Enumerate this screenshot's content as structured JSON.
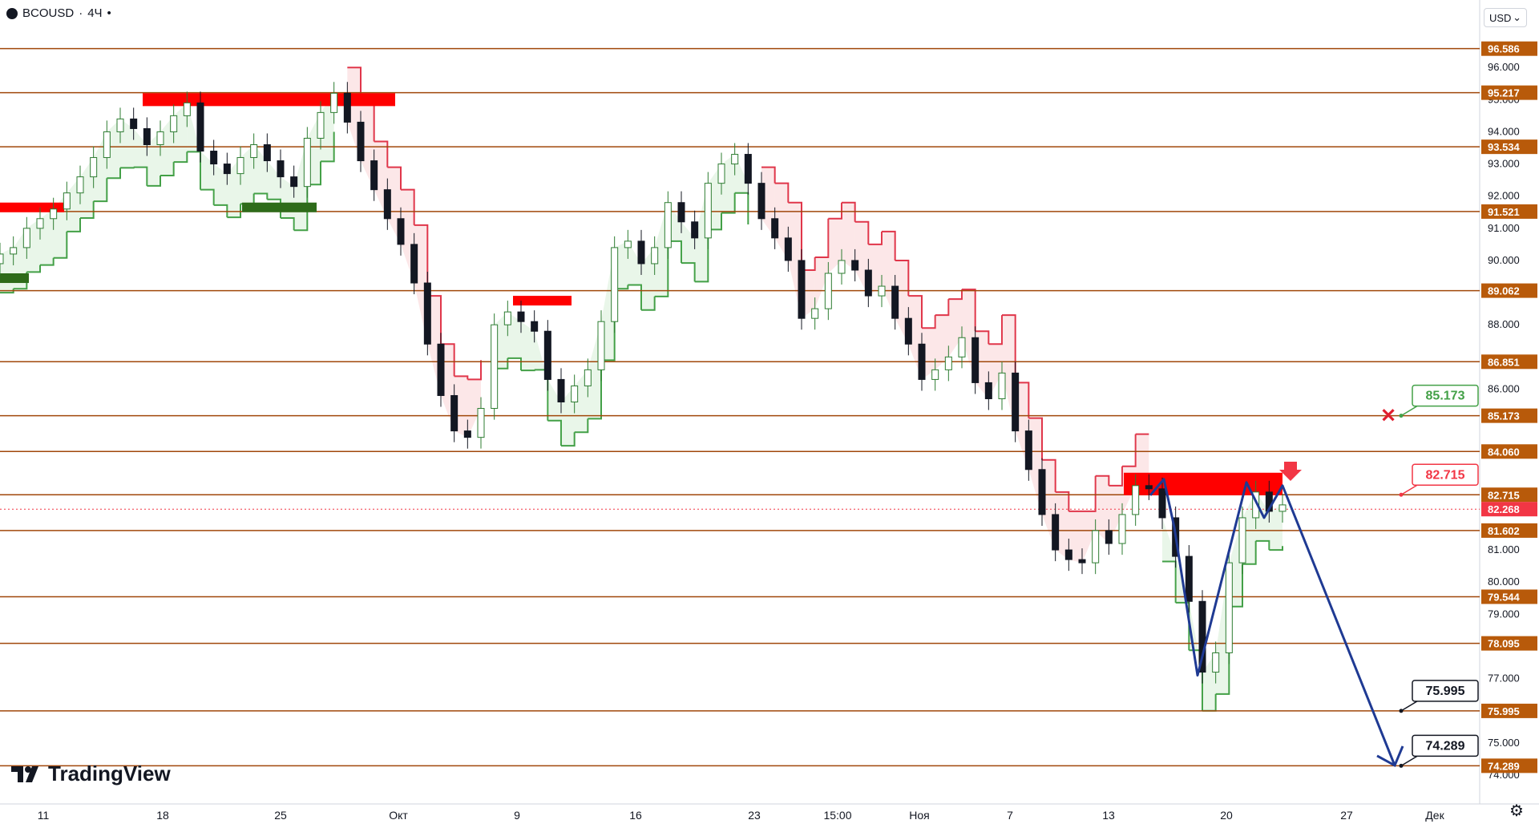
{
  "symbol": {
    "name": "BCOUSD",
    "separator": "·",
    "timeframe": "4Ч",
    "status_dot": "•"
  },
  "currency": {
    "label": "USD",
    "chevron": "⌄"
  },
  "logo": {
    "text": "TradingView"
  },
  "colors": {
    "level_line": "#a0470a",
    "level_label_bg": "#b85a0a",
    "bull_candle": "#2e7d32",
    "bear_candle": "#131722",
    "supertrend_down": "#e0364a",
    "supertrend_up": "#43a047",
    "fill_down": "rgba(240,120,130,0.18)",
    "fill_up": "rgba(120,200,120,0.16)",
    "supply_zone": "#ff0000",
    "demand_zone": "#2e6b1a",
    "projection": "#1f3a93",
    "current_price_bg": "#f23645",
    "target_green": "#43a047",
    "target_red": "#f23645",
    "target_black": "#131722"
  },
  "chart_data": {
    "type": "candlestick",
    "title": "",
    "xlabel": "",
    "ylabel": "",
    "ylim": [
      73.6,
      97.6
    ],
    "grid": false,
    "price_axis_ticks": [
      "96.000",
      "95.000",
      "94.000",
      "93.000",
      "92.000",
      "91.000",
      "90.000",
      "88.000",
      "86.000",
      "81.000",
      "80.000",
      "79.000",
      "77.000",
      "75.000",
      "74.000"
    ],
    "time_axis_labels": [
      "11",
      "18",
      "25",
      "Окт",
      "9",
      "16",
      "23",
      "15:00",
      "Ноя",
      "7",
      "13",
      "20",
      "27",
      "Дек"
    ],
    "levels": [
      96.586,
      95.217,
      93.534,
      91.521,
      89.062,
      86.851,
      85.173,
      84.06,
      82.715,
      81.602,
      79.544,
      78.095,
      75.995,
      74.289
    ],
    "level_labels": [
      "96.586",
      "95.217",
      "93.534",
      "91.521",
      "89.062",
      "86.851",
      "85.173",
      "84.060",
      "82.715",
      "81.602",
      "79.544",
      "78.095",
      "75.995",
      "74.289"
    ],
    "current_price": 82.268,
    "current_price_label": "82.268",
    "close_series": [
      90.2,
      90.4,
      91.0,
      91.3,
      91.6,
      92.1,
      92.6,
      93.2,
      94.0,
      94.4,
      94.1,
      93.6,
      94.0,
      94.5,
      94.9,
      93.4,
      93.0,
      92.7,
      93.2,
      93.6,
      93.1,
      92.6,
      92.3,
      93.8,
      94.6,
      95.2,
      94.3,
      93.1,
      92.2,
      91.3,
      90.5,
      89.3,
      87.4,
      85.8,
      84.7,
      84.5,
      85.4,
      88.0,
      88.4,
      88.1,
      87.8,
      86.3,
      85.6,
      86.1,
      86.6,
      88.1,
      90.4,
      90.6,
      89.9,
      90.4,
      91.8,
      91.2,
      90.7,
      92.4,
      93.0,
      93.3,
      92.4,
      91.3,
      90.7,
      90.0,
      88.2,
      88.5,
      89.6,
      90.0,
      89.7,
      88.9,
      89.2,
      88.2,
      87.4,
      86.3,
      86.6,
      87.0,
      87.6,
      86.2,
      85.7,
      86.5,
      84.7,
      83.5,
      82.1,
      81.0,
      80.7,
      80.6,
      81.6,
      81.2,
      82.1,
      83.0,
      82.9,
      82.0,
      80.8,
      79.4,
      77.2,
      77.8,
      80.6,
      82.0,
      82.8,
      82.2,
      82.4
    ],
    "close_series_label": "",
    "supertrend_segments": [
      {
        "direction": "down",
        "values": [
          [
            95.6,
            95.6,
            95.5,
            95.4,
            95.3,
            95.0,
            94.8,
            94.5,
            94.2,
            94.0,
            93.6,
            93.4,
            93.1,
            92.4,
            91.8,
            91.2,
            90.3,
            89.8,
            89.3,
            88.9,
            88.3,
            87.7,
            87.1
          ]
        ]
      },
      {
        "direction": "up",
        "values": [
          [
            89.3,
            89.3,
            89.6,
            90.1,
            90.8,
            91.1,
            91.6,
            92.6,
            93.0,
            93.0,
            93.0,
            92.0,
            92.0,
            92.6,
            93.4,
            93.6,
            93.6
          ]
        ]
      }
    ],
    "supply_zones": [
      {
        "from": 91.5,
        "to": 91.8
      },
      {
        "from": 94.8,
        "to": 95.2
      },
      {
        "from": 88.6,
        "to": 88.9
      },
      {
        "from": 82.7,
        "to": 83.4
      }
    ],
    "demand_zones": [
      {
        "from": 89.3,
        "to": 89.6
      },
      {
        "from": 91.5,
        "to": 91.8
      }
    ],
    "projection_path": [
      82.7,
      83.2,
      81.7,
      77.1,
      83.1,
      82.0,
      83.0,
      74.3
    ],
    "targets": [
      {
        "label": "85.173",
        "value": 85.173,
        "style": "green"
      },
      {
        "label": "82.715",
        "value": 82.715,
        "style": "red"
      },
      {
        "label": "75.995",
        "value": 75.995,
        "style": "black"
      },
      {
        "label": "74.289",
        "value": 74.289,
        "style": "black"
      }
    ],
    "stop_marker": "✕"
  }
}
